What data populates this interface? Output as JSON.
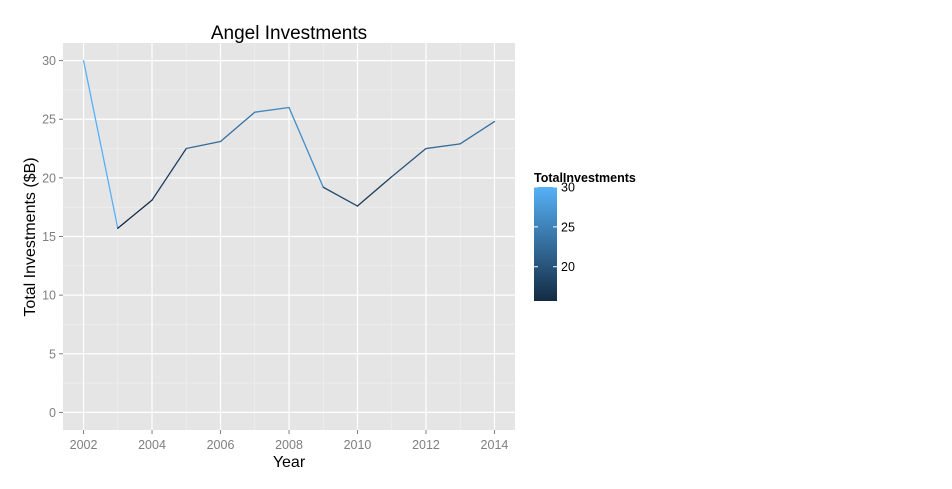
{
  "chart_data": {
    "type": "line",
    "title": "Angel Investments",
    "xlabel": "Year",
    "ylabel": "Total Investments ($B)",
    "x": [
      2002,
      2003,
      2004,
      2005,
      2006,
      2007,
      2008,
      2009,
      2010,
      2011,
      2012,
      2013,
      2014
    ],
    "series": [
      {
        "values": [
          30.0,
          15.7,
          18.1,
          22.5,
          23.1,
          25.6,
          26.0,
          19.2,
          17.6,
          20.1,
          22.5,
          22.9,
          24.8
        ]
      }
    ],
    "x_ticks": [
      2002,
      2004,
      2006,
      2008,
      2010,
      2012,
      2014
    ],
    "y_ticks": [
      0,
      5,
      10,
      15,
      20,
      25,
      30
    ],
    "xlim": [
      2001.4,
      2014.6
    ],
    "ylim": [
      -1.5,
      31.5
    ],
    "grid": true,
    "panel_background": "#e5e5e5",
    "grid_color": "#ffffff",
    "minor_grid_color": "#f2f2f2",
    "legend": {
      "title": "TotalInvestments",
      "position": "right",
      "labels": [
        20,
        25,
        30
      ],
      "range": [
        15.7,
        30.0
      ],
      "color_low": "#132b43",
      "color_high": "#56b1f7"
    }
  }
}
